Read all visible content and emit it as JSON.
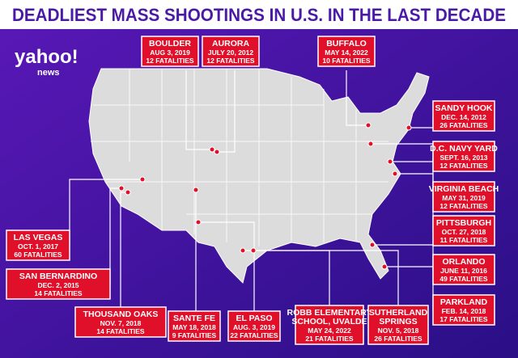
{
  "header": {
    "title": "DEADLIEST MASS SHOOTINGS IN U.S. IN THE LAST DECADE",
    "logo": "yahoo!",
    "logo_sub": "news"
  },
  "callouts": [
    {
      "name": [
        "BOULDER"
      ],
      "date": "AUG 3, 2019",
      "fatalities": "12 FATALITIES"
    },
    {
      "name": [
        "AURORA"
      ],
      "date": "JULY 20, 2012",
      "fatalities": "12 FATALITIES"
    },
    {
      "name": [
        "BUFFALO"
      ],
      "date": "MAY 14, 2022",
      "fatalities": "10 FATALITIES"
    },
    {
      "name": [
        "SANDY HOOK"
      ],
      "date": "DEC. 14, 2012",
      "fatalities": "26 FATALITIES"
    },
    {
      "name": [
        "D.C. NAVY YARD"
      ],
      "date": "SEPT. 16, 2013",
      "fatalities": "12 FATALITIES"
    },
    {
      "name": [
        "VIRGINIA BEACH"
      ],
      "date": "MAY 31, 2019",
      "fatalities": "12 FATALITIES"
    },
    {
      "name": [
        "PITTSBURGH"
      ],
      "date": "OCT. 27, 2018",
      "fatalities": "11 FATALITIES"
    },
    {
      "name": [
        "ORLANDO"
      ],
      "date": "JUNE 11, 2016",
      "fatalities": "49 FATALITIES"
    },
    {
      "name": [
        "PARKLAND"
      ],
      "date": "FEB. 14, 2018",
      "fatalities": "17 FATALITIES"
    },
    {
      "name": [
        "LAS VEGAS"
      ],
      "date": "OCT. 1, 2017",
      "fatalities": "60 FATALITIES"
    },
    {
      "name": [
        "SAN BERNARDINO"
      ],
      "date": "DEC. 2, 2015",
      "fatalities": "14 FATALITIES"
    },
    {
      "name": [
        "THOUSAND OAKS"
      ],
      "date": "NOV. 7, 2018",
      "fatalities": "14 FATALITIES"
    },
    {
      "name": [
        "SANTE FE"
      ],
      "date": "MAY 18, 2018",
      "fatalities": "9 FATALITIES"
    },
    {
      "name": [
        "EL PASO"
      ],
      "date": "AUG. 3, 2019",
      "fatalities": "22 FATALITIES"
    },
    {
      "name": [
        "ROBB ELEMENTARY",
        "SCHOOL, UVALDE"
      ],
      "date": "MAY 24, 2022",
      "fatalities": "21 FATALITIES"
    },
    {
      "name": [
        "SUTHERLAND",
        "SPRINGS"
      ],
      "date": "NOV. 5, 2018",
      "fatalities": "26 FATALITIES"
    }
  ]
}
